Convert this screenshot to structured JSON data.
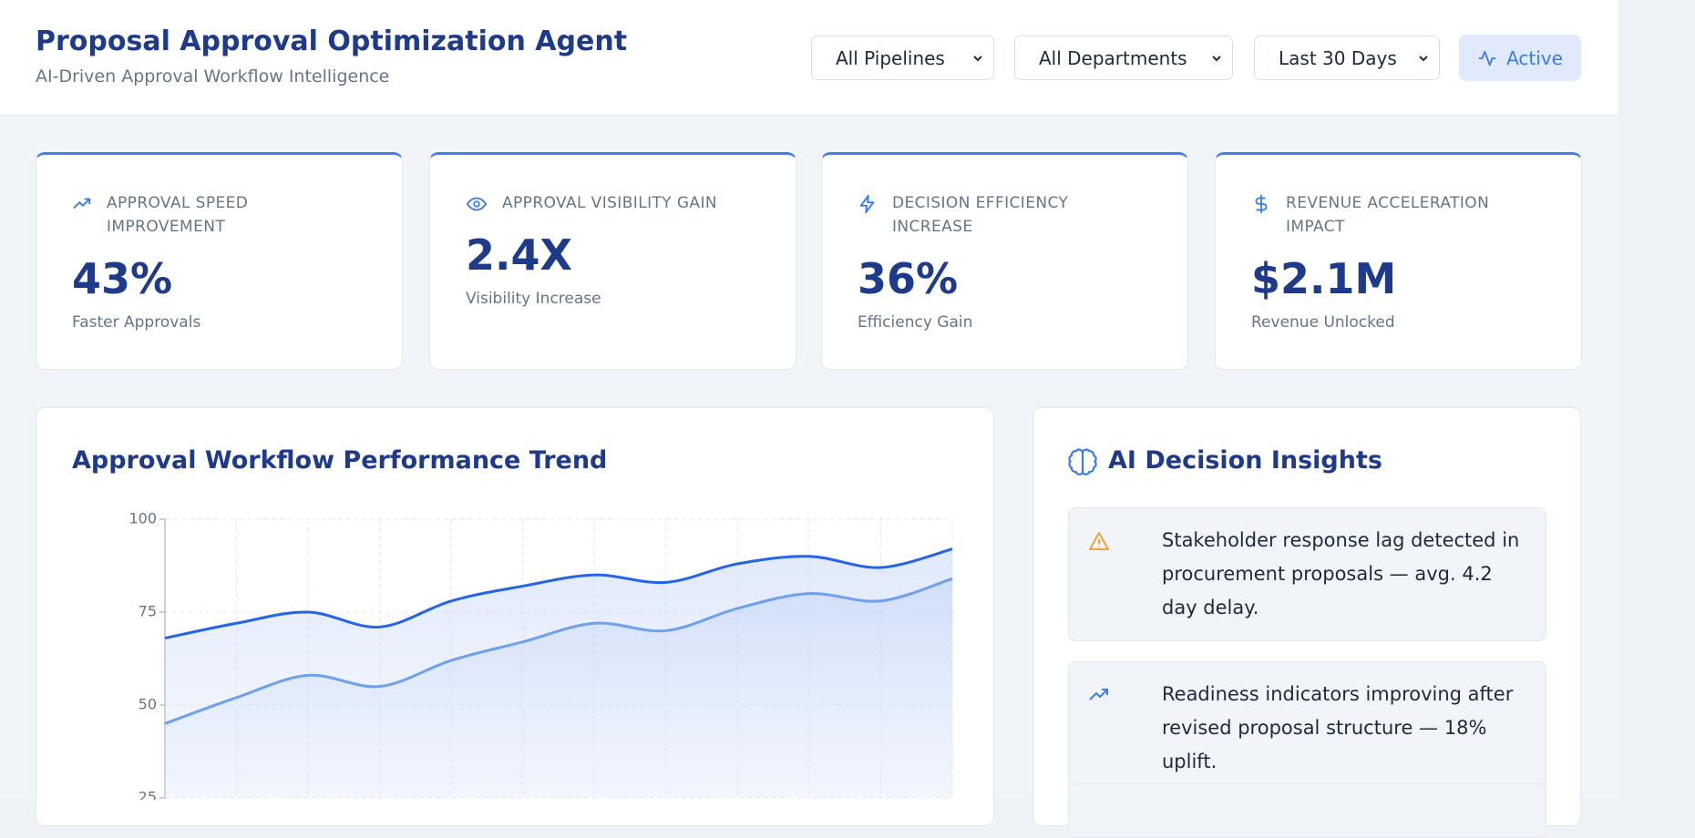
{
  "header": {
    "title": "Proposal Approval Optimization Agent",
    "subtitle": "AI-Driven Approval Workflow Intelligence",
    "filters": [
      "All Pipelines",
      "All Departments",
      "Last 30 Days"
    ],
    "status": "Active"
  },
  "kpis": [
    {
      "label": "APPROVAL SPEED IMPROVEMENT",
      "value": "43%",
      "caption": "Faster Approvals"
    },
    {
      "label": "APPROVAL VISIBILITY GAIN",
      "value": "2.4X",
      "caption": "Visibility Increase"
    },
    {
      "label": "DECISION EFFICIENCY INCREASE",
      "value": "36%",
      "caption": "Efficiency Gain"
    },
    {
      "label": "REVENUE ACCELERATION IMPACT",
      "value": "$2.1M",
      "caption": "Revenue Unlocked"
    }
  ],
  "chart_data": {
    "type": "line",
    "title": "Approval Workflow Performance Trend",
    "series": [
      {
        "color": "#2563eb",
        "values": [
          68,
          72,
          75,
          71,
          78,
          82,
          85,
          83,
          88,
          90,
          87,
          92
        ]
      },
      {
        "color": "#6ea0ee",
        "values": [
          45,
          52,
          58,
          55,
          62,
          67,
          72,
          70,
          76,
          80,
          78,
          84
        ]
      }
    ],
    "ylim": [
      25,
      100
    ],
    "yticks": [
      25,
      50,
      75,
      100
    ],
    "grid": true,
    "area": true
  },
  "insights": {
    "title": "AI Decision Insights",
    "items": [
      "Stakeholder response lag detected in procurement proposals — avg. 4.2 day delay.",
      "Readiness indicators improving after revised proposal structure — 18% uplift."
    ]
  }
}
